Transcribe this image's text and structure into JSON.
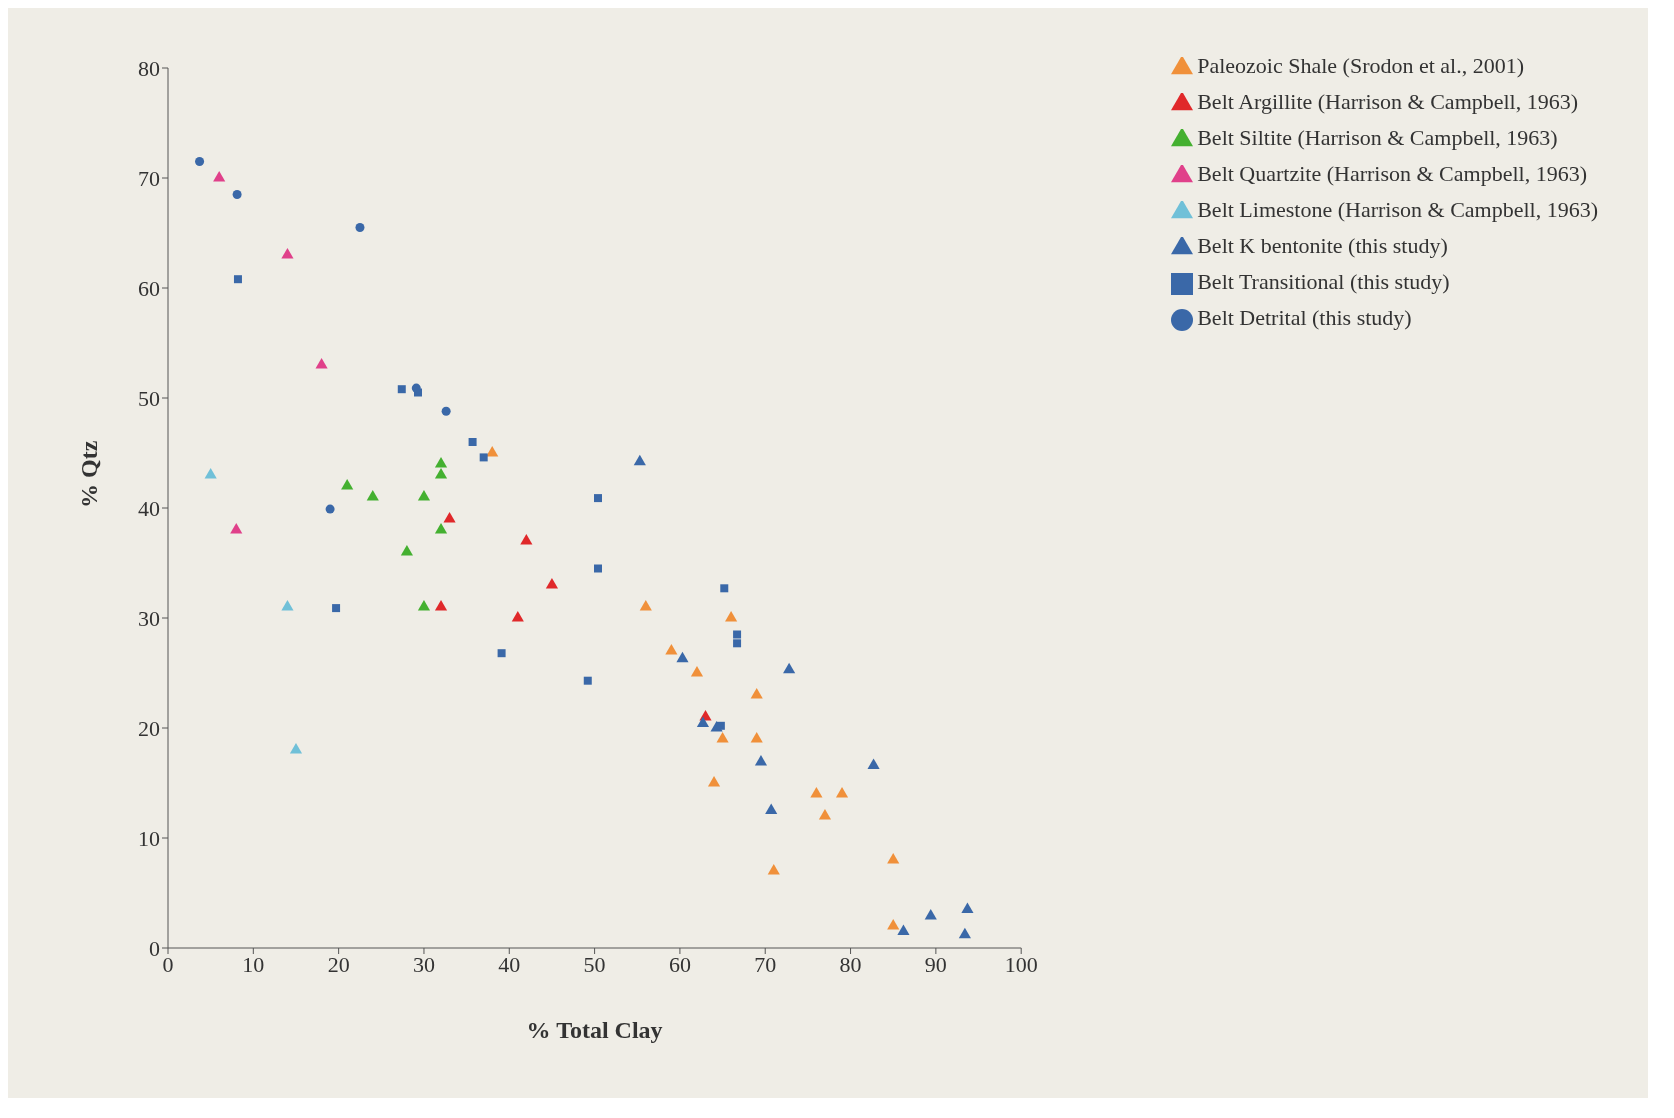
{
  "chart_data": {
    "type": "scatter",
    "xlabel": "% Total Clay",
    "ylabel": "% Qtz",
    "xlim": [
      0,
      100
    ],
    "ylim": [
      0,
      80
    ],
    "xticks": [
      0,
      10,
      20,
      30,
      40,
      50,
      60,
      70,
      80,
      90,
      100
    ],
    "yticks": [
      0,
      10,
      20,
      30,
      40,
      50,
      60,
      70,
      80
    ],
    "grid": false,
    "legend": "top right",
    "series": [
      {
        "name": "Paleozoic Shale (Srodon et al., 2001)",
        "color": "#f0903a",
        "marker": "triangle",
        "x": [
          38,
          56,
          59,
          62,
          66,
          65,
          64,
          69,
          69,
          71,
          76,
          77,
          79,
          85,
          85
        ],
        "values": [
          45,
          31,
          27,
          25,
          30,
          19,
          15,
          23,
          19,
          7,
          14,
          12,
          14,
          8,
          2
        ]
      },
      {
        "name": "Belt Argillite (Harrison & Campbell, 1963)",
        "color": "#e0282a",
        "marker": "triangle",
        "x": [
          32,
          33,
          41,
          42,
          45,
          63
        ],
        "values": [
          31,
          39,
          30,
          37,
          33,
          21
        ]
      },
      {
        "name": "Belt Siltite (Harrison & Campbell, 1963)",
        "color": "#44b030",
        "marker": "triangle",
        "x": [
          21,
          24,
          28,
          30,
          30,
          32,
          32,
          32
        ],
        "values": [
          42,
          41,
          36,
          41,
          31,
          44,
          43,
          38
        ]
      },
      {
        "name": "Belt Quartzite (Harrison & Campbell, 1963)",
        "color": "#e0408a",
        "marker": "triangle",
        "x": [
          6,
          14,
          18,
          8
        ],
        "values": [
          70,
          63,
          53,
          38
        ]
      },
      {
        "name": "Belt Limestone (Harrison & Campbell, 1963)",
        "color": "#70c0d8",
        "marker": "triangle",
        "x": [
          5,
          14,
          15
        ],
        "values": [
          43,
          31,
          18
        ]
      },
      {
        "name": "Belt K bentonite (this study)",
        "color": "#3a68a8",
        "marker": "triangle",
        "x": [
          55.3,
          60.3,
          62.7,
          64.3,
          69.5,
          70.7,
          72.8,
          82.7,
          86.2,
          89.4,
          93.4,
          93.7
        ],
        "values": [
          44.2,
          26.3,
          20.4,
          20,
          16.9,
          12.5,
          25.3,
          16.6,
          1.5,
          2.9,
          1.2,
          3.5
        ]
      },
      {
        "name": "Belt Transitional (this study)",
        "color": "#3a68a8",
        "marker": "square",
        "x": [
          8.2,
          19.7,
          27.4,
          29.3,
          35.7,
          37,
          39.1,
          49.2,
          50.4,
          50.4,
          65.2,
          64.8,
          66.7,
          66.7
        ],
        "values": [
          60.8,
          30.9,
          50.8,
          50.5,
          46,
          44.6,
          26.8,
          24.3,
          40.9,
          34.5,
          32.7,
          20.2,
          28.5,
          27.7
        ]
      },
      {
        "name": "Belt Detrital (this study)",
        "color": "#3a68a8",
        "marker": "circle",
        "x": [
          3.7,
          8.1,
          22.5,
          29.1,
          32.6,
          19
        ],
        "values": [
          71.5,
          68.5,
          65.5,
          50.9,
          48.8,
          39.9
        ]
      }
    ]
  }
}
